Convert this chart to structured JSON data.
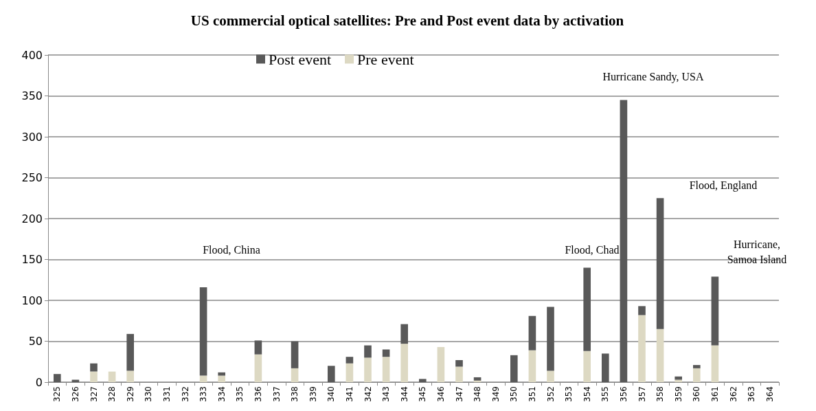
{
  "chart_data": {
    "type": "bar",
    "title": "US commercial optical satellites: Pre and Post event data by activation",
    "stacked": true,
    "categories": [
      "325",
      "326",
      "327",
      "328",
      "329",
      "330",
      "331",
      "332",
      "333",
      "334",
      "335",
      "336",
      "337",
      "338",
      "339",
      "340",
      "341",
      "342",
      "343",
      "344",
      "345",
      "346",
      "347",
      "348",
      "349",
      "350",
      "351",
      "352",
      "353",
      "354",
      "355",
      "356",
      "357",
      "358",
      "359",
      "360",
      "361",
      "362",
      "363",
      "364"
    ],
    "series": [
      {
        "name": "Pre event",
        "color": "#ddd9c3",
        "values": [
          0,
          0,
          13,
          13,
          14,
          0,
          0,
          0,
          8,
          8,
          0,
          34,
          0,
          17,
          0,
          0,
          23,
          30,
          31,
          47,
          0,
          43,
          19,
          2,
          0,
          0,
          39,
          14,
          0,
          38,
          0,
          0,
          82,
          65,
          3,
          17,
          45,
          0,
          0,
          0
        ]
      },
      {
        "name": "Post event",
        "color": "#595959",
        "values": [
          10,
          3,
          10,
          0,
          45,
          0,
          0,
          0,
          108,
          4,
          0,
          17,
          0,
          33,
          0,
          20,
          8,
          15,
          9,
          24,
          4,
          0,
          8,
          4,
          0,
          33,
          42,
          78,
          0,
          102,
          35,
          345,
          11,
          160,
          4,
          4,
          84,
          0,
          0,
          0
        ]
      }
    ],
    "ylim": [
      0,
      400
    ],
    "yticks": [
      0,
      50,
      100,
      150,
      200,
      250,
      300,
      350,
      400
    ],
    "grid": "y",
    "legend": "top",
    "annotations": [
      "Flood, China",
      "Flood, Chad",
      "Hurricane Sandy, USA",
      "Flood, England",
      "Hurricane,\nSamoa Island"
    ]
  }
}
